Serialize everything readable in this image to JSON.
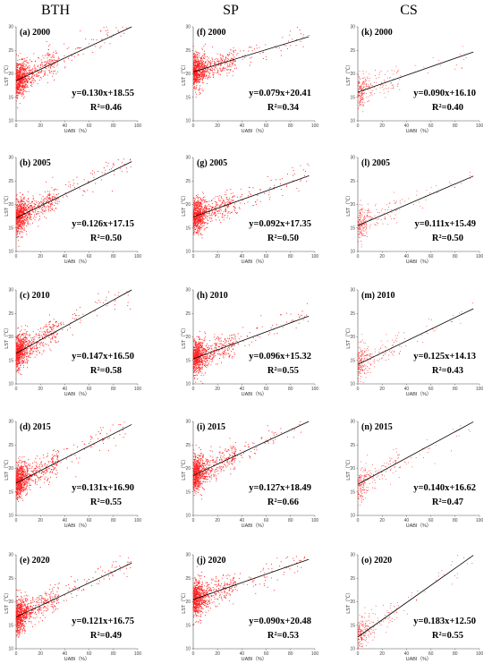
{
  "column_titles": [
    "BTH",
    "SP",
    "CS"
  ],
  "colors": {
    "points": "#ff2020",
    "line": "#000000",
    "axis": "#555555"
  },
  "chart_data": [
    {
      "type": "scatter",
      "label": "(a)",
      "year": "2000",
      "region": "BTH",
      "equation": "y=0.130x+18.55",
      "r2": "R²=0.46",
      "slope": 0.13,
      "intercept": 18.55,
      "xlabel": "UABI（%）",
      "ylabel": "LST（℃）",
      "xlim": [
        0,
        100
      ],
      "ylim": [
        10,
        30
      ],
      "xticks": [
        0,
        20,
        40,
        60,
        80,
        100
      ],
      "yticks": [
        10,
        15,
        20,
        25,
        30
      ]
    },
    {
      "type": "scatter",
      "label": "(b)",
      "year": "2005",
      "region": "BTH",
      "equation": "y=0.126x+17.15",
      "r2": "R²=0.50",
      "slope": 0.126,
      "intercept": 17.15,
      "xlabel": "UABI（%）",
      "ylabel": "LST（℃）",
      "xlim": [
        0,
        100
      ],
      "ylim": [
        10,
        30
      ],
      "xticks": [
        0,
        20,
        40,
        60,
        80,
        100
      ],
      "yticks": [
        10,
        15,
        20,
        25,
        30
      ]
    },
    {
      "type": "scatter",
      "label": "(c)",
      "year": "2010",
      "region": "BTH",
      "equation": "y=0.147x+16.50",
      "r2": "R²=0.58",
      "slope": 0.147,
      "intercept": 16.5,
      "xlabel": "UABI（%）",
      "ylabel": "LST（℃）",
      "xlim": [
        0,
        100
      ],
      "ylim": [
        10,
        30
      ],
      "xticks": [
        0,
        20,
        40,
        60,
        80,
        100
      ],
      "yticks": [
        10,
        15,
        20,
        25,
        30
      ]
    },
    {
      "type": "scatter",
      "label": "(d)",
      "year": "2015",
      "region": "BTH",
      "equation": "y=0.131x+16.90",
      "r2": "R²=0.55",
      "slope": 0.131,
      "intercept": 16.9,
      "xlabel": "UABI（%）",
      "ylabel": "LST（℃）",
      "xlim": [
        0,
        100
      ],
      "ylim": [
        10,
        30
      ],
      "xticks": [
        0,
        20,
        40,
        60,
        80,
        100
      ],
      "yticks": [
        10,
        15,
        20,
        25,
        30
      ]
    },
    {
      "type": "scatter",
      "label": "(e)",
      "year": "2020",
      "region": "BTH",
      "equation": "y=0.121x+16.75",
      "r2": "R²=0.49",
      "slope": 0.121,
      "intercept": 16.75,
      "xlabel": "UABI（%）",
      "ylabel": "LST（℃）",
      "xlim": [
        0,
        100
      ],
      "ylim": [
        10,
        30
      ],
      "xticks": [
        0,
        20,
        40,
        60,
        80,
        100
      ],
      "yticks": [
        10,
        15,
        20,
        25,
        30
      ]
    },
    {
      "type": "scatter",
      "label": "(f)",
      "year": "2000",
      "region": "SP",
      "equation": "y=0.079x+20.41",
      "r2": "R²=0.34",
      "slope": 0.079,
      "intercept": 20.41,
      "xlabel": "UABI（%）",
      "ylabel": "LST（℃）",
      "xlim": [
        0,
        100
      ],
      "ylim": [
        10,
        30
      ],
      "xticks": [
        0,
        20,
        40,
        60,
        80,
        100
      ],
      "yticks": [
        10,
        15,
        20,
        25,
        30
      ]
    },
    {
      "type": "scatter",
      "label": "(g)",
      "year": "2005",
      "region": "SP",
      "equation": "y=0.092x+17.35",
      "r2": "R²=0.50",
      "slope": 0.092,
      "intercept": 17.35,
      "xlabel": "UABI（%）",
      "ylabel": "LST（℃）",
      "xlim": [
        0,
        100
      ],
      "ylim": [
        10,
        30
      ],
      "xticks": [
        0,
        20,
        40,
        60,
        80,
        100
      ],
      "yticks": [
        10,
        15,
        20,
        25,
        30
      ]
    },
    {
      "type": "scatter",
      "label": "(h)",
      "year": "2010",
      "region": "SP",
      "equation": "y=0.096x+15.32",
      "r2": "R²=0.55",
      "slope": 0.096,
      "intercept": 15.32,
      "xlabel": "UABI（%）",
      "ylabel": "LST（℃）",
      "xlim": [
        0,
        100
      ],
      "ylim": [
        10,
        30
      ],
      "xticks": [
        0,
        20,
        40,
        60,
        80,
        100
      ],
      "yticks": [
        10,
        15,
        20,
        25,
        30
      ]
    },
    {
      "type": "scatter",
      "label": "(i)",
      "year": "2015",
      "region": "SP",
      "equation": "y=0.127x+18.49",
      "r2": "R²=0.66",
      "slope": 0.127,
      "intercept": 18.49,
      "xlabel": "UABI（%）",
      "ylabel": "LST（℃）",
      "xlim": [
        0,
        100
      ],
      "ylim": [
        10,
        30
      ],
      "xticks": [
        0,
        20,
        40,
        60,
        80,
        100
      ],
      "yticks": [
        10,
        15,
        20,
        25,
        30
      ]
    },
    {
      "type": "scatter",
      "label": "(j)",
      "year": "2020",
      "region": "SP",
      "equation": "y=0.090x+20.48",
      "r2": "R²=0.53",
      "slope": 0.09,
      "intercept": 20.48,
      "xlabel": "UABI（%）",
      "ylabel": "LST（℃）",
      "xlim": [
        0,
        100
      ],
      "ylim": [
        10,
        30
      ],
      "xticks": [
        0,
        20,
        40,
        60,
        80,
        100
      ],
      "yticks": [
        10,
        15,
        20,
        25,
        30
      ]
    },
    {
      "type": "scatter",
      "label": "(k)",
      "year": "2000",
      "region": "CS",
      "equation": "y=0.090x+16.10",
      "r2": "R²=0.40",
      "slope": 0.09,
      "intercept": 16.1,
      "xlabel": "UABI（%）",
      "ylabel": "LST（℃）",
      "xlim": [
        0,
        100
      ],
      "ylim": [
        10,
        30
      ],
      "xticks": [
        0,
        20,
        40,
        60,
        80,
        100
      ],
      "yticks": [
        10,
        15,
        20,
        25,
        30
      ]
    },
    {
      "type": "scatter",
      "label": "(l)",
      "year": "2005",
      "region": "CS",
      "equation": "y=0.111x+15.49",
      "r2": "R²=0.50",
      "slope": 0.111,
      "intercept": 15.49,
      "xlabel": "UABI（%）",
      "ylabel": "LST（℃）",
      "xlim": [
        0,
        100
      ],
      "ylim": [
        10,
        30
      ],
      "xticks": [
        0,
        20,
        40,
        60,
        80,
        100
      ],
      "yticks": [
        10,
        15,
        20,
        25,
        30
      ]
    },
    {
      "type": "scatter",
      "label": "(m)",
      "year": "2010",
      "region": "CS",
      "equation": "y=0.125x+14.13",
      "r2": "R²=0.43",
      "slope": 0.125,
      "intercept": 14.13,
      "xlabel": "UABI（%）",
      "ylabel": "LST（℃）",
      "xlim": [
        0,
        100
      ],
      "ylim": [
        10,
        30
      ],
      "xticks": [
        0,
        20,
        40,
        60,
        80,
        100
      ],
      "yticks": [
        10,
        15,
        20,
        25,
        30
      ]
    },
    {
      "type": "scatter",
      "label": "(n)",
      "year": "2015",
      "region": "CS",
      "equation": "y=0.140x+16.62",
      "r2": "R²=0.47",
      "slope": 0.14,
      "intercept": 16.62,
      "xlabel": "UABI（%）",
      "ylabel": "LST（℃）",
      "xlim": [
        0,
        100
      ],
      "ylim": [
        10,
        30
      ],
      "xticks": [
        0,
        20,
        40,
        60,
        80,
        100
      ],
      "yticks": [
        10,
        15,
        20,
        25,
        30
      ]
    },
    {
      "type": "scatter",
      "label": "(o)",
      "year": "2020",
      "region": "CS",
      "equation": "y=0.183x+12.50",
      "r2": "R²=0.55",
      "slope": 0.183,
      "intercept": 12.5,
      "xlabel": "UABI（%）",
      "ylabel": "LST（℃）",
      "xlim": [
        0,
        100
      ],
      "ylim": [
        10,
        30
      ],
      "xticks": [
        0,
        20,
        40,
        60,
        80,
        100
      ],
      "yticks": [
        10,
        15,
        20,
        25,
        30
      ]
    }
  ]
}
